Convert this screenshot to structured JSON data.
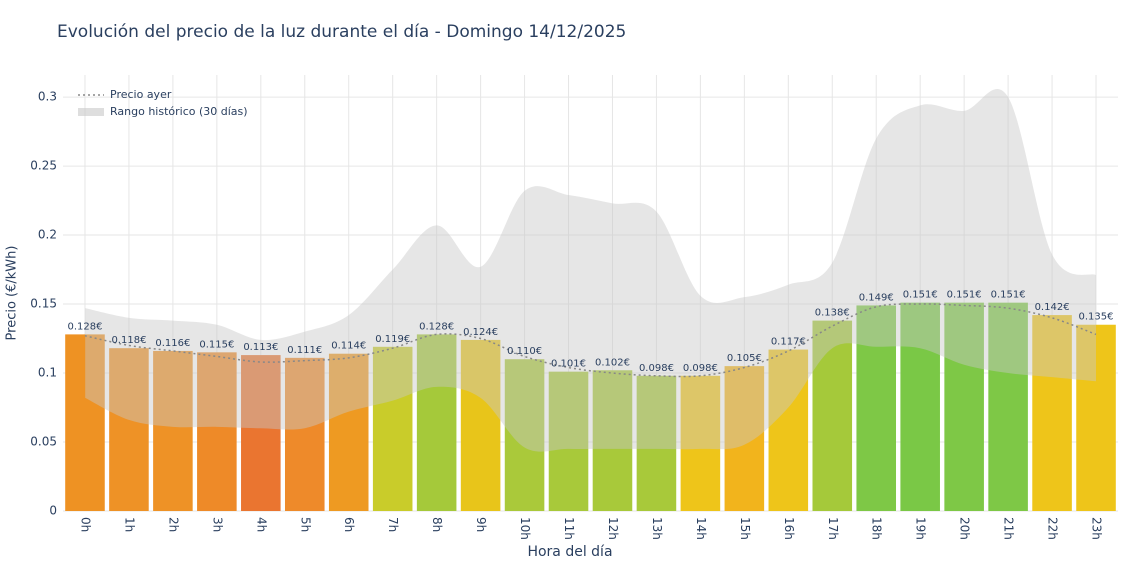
{
  "chart_data": {
    "type": "bar",
    "title": "Evolución del precio de la luz durante el día - Domingo 14/12/2025",
    "x_label": "Hora del día",
    "y_label": "Precio (€/kWh)",
    "categories": [
      "0h",
      "1h",
      "2h",
      "3h",
      "4h",
      "5h",
      "6h",
      "7h",
      "8h",
      "9h",
      "10h",
      "11h",
      "12h",
      "13h",
      "14h",
      "15h",
      "16h",
      "17h",
      "18h",
      "19h",
      "20h",
      "21h",
      "22h",
      "23h"
    ],
    "values": [
      0.128,
      0.118,
      0.116,
      0.115,
      0.113,
      0.111,
      0.114,
      0.119,
      0.128,
      0.124,
      0.11,
      0.101,
      0.102,
      0.098,
      0.098,
      0.105,
      0.117,
      0.138,
      0.149,
      0.151,
      0.151,
      0.151,
      0.142,
      0.135
    ],
    "value_labels": [
      "0.128€",
      "0.118€",
      "0.116€",
      "0.115€",
      "0.113€",
      "0.111€",
      "0.114€",
      "0.119€",
      "0.128€",
      "0.124€",
      "0.110€",
      "0.101€",
      "0.102€",
      "0.098€",
      "0.098€",
      "0.105€",
      "0.117€",
      "0.138€",
      "0.149€",
      "0.151€",
      "0.151€",
      "0.151€",
      "0.142€",
      "0.135€"
    ],
    "colors": [
      "#ee9223",
      "#ee9226",
      "#ee9226",
      "#ee8a28",
      "#ea7530",
      "#ee8a2a",
      "#ee9a22",
      "#c9cc2a",
      "#a5c93a",
      "#e8c51a",
      "#aac93a",
      "#a8c93a",
      "#a8c93a",
      "#a8c93a",
      "#eec51a",
      "#f2b41c",
      "#eec51a",
      "#a5c93a",
      "#7ec846",
      "#7ac846",
      "#7ec846",
      "#7ec846",
      "#eec51a",
      "#eec51a"
    ],
    "yesterday": {
      "name": "Precio ayer",
      "color": "#888888",
      "values": [
        0.127,
        0.12,
        0.116,
        0.112,
        0.108,
        0.109,
        0.111,
        0.118,
        0.128,
        0.125,
        0.112,
        0.104,
        0.1,
        0.098,
        0.098,
        0.104,
        0.116,
        0.134,
        0.148,
        0.15,
        0.149,
        0.147,
        0.14,
        0.128
      ]
    },
    "band": {
      "name": "Rango histórico (30 días)",
      "color": "#c8c8c8",
      "upper": [
        0.147,
        0.14,
        0.138,
        0.135,
        0.124,
        0.13,
        0.142,
        0.175,
        0.207,
        0.177,
        0.232,
        0.229,
        0.223,
        0.217,
        0.156,
        0.155,
        0.164,
        0.18,
        0.27,
        0.294,
        0.29,
        0.3,
        0.186,
        0.171
      ],
      "lower": [
        0.082,
        0.066,
        0.061,
        0.061,
        0.06,
        0.06,
        0.072,
        0.08,
        0.09,
        0.082,
        0.046,
        0.045,
        0.045,
        0.045,
        0.045,
        0.048,
        0.075,
        0.118,
        0.119,
        0.118,
        0.106,
        0.1,
        0.097,
        0.094
      ]
    },
    "ylim": [
      0,
      0.316
    ],
    "yticks": [
      0,
      0.05,
      0.1,
      0.15,
      0.2,
      0.25,
      0.3
    ],
    "grid": true
  }
}
